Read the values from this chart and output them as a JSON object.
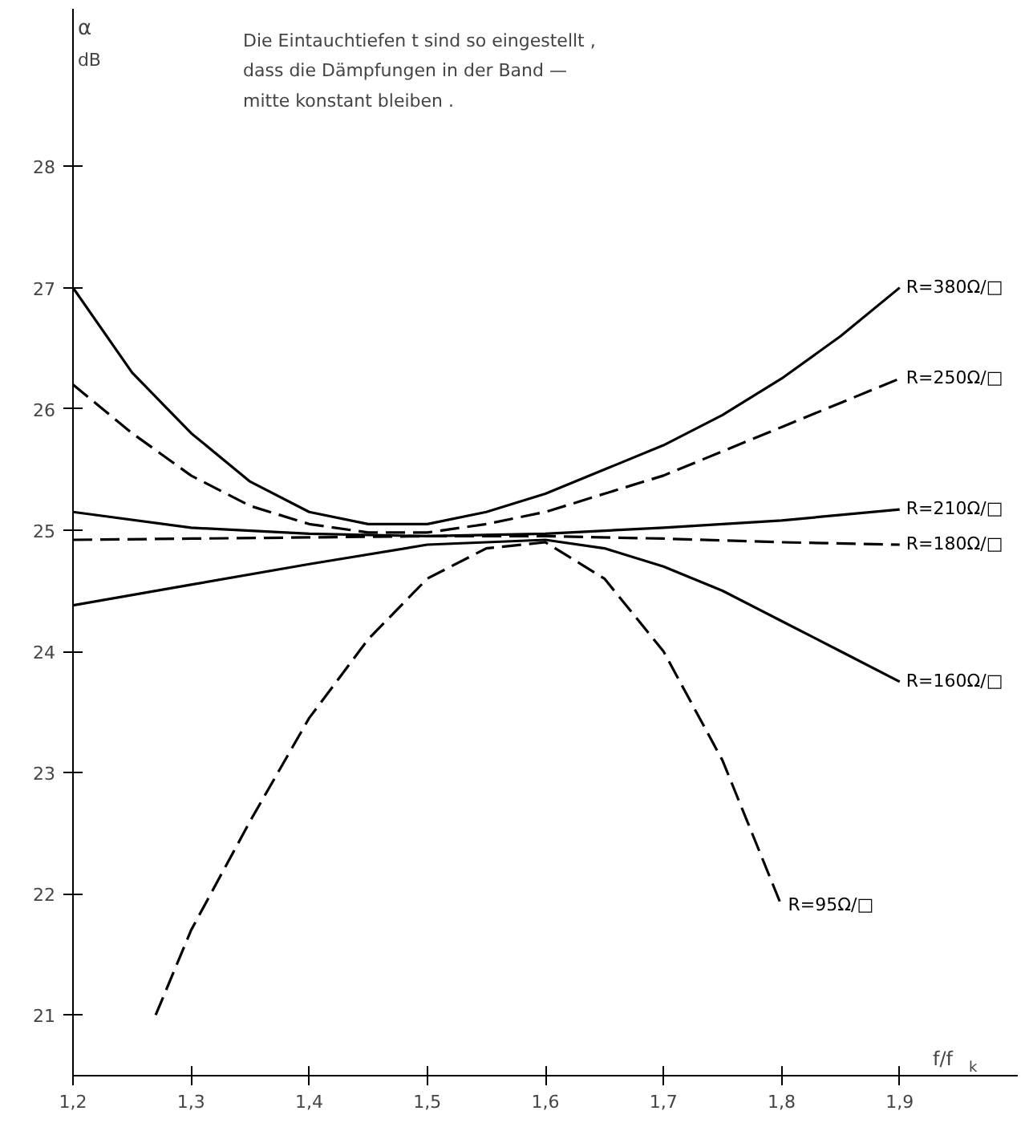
{
  "chart_data": {
    "type": "line",
    "xlabel": "f/f$_{k}$",
    "ylabel": "α dB",
    "annotations": [
      "Die Eintauchtiefen t sind so eingestellt ,\ndass die Dämpfungen in der Band —\nmitte konstant bleiben ."
    ],
    "xlim": [
      1.2,
      2.0
    ],
    "ylim": [
      20.5,
      29.3
    ],
    "xticks": [
      {
        "value": 1.2,
        "label": "1,2"
      },
      {
        "value": 1.3,
        "label": "1,3"
      },
      {
        "value": 1.4,
        "label": "1,4"
      },
      {
        "value": 1.5,
        "label": "1,5"
      },
      {
        "value": 1.6,
        "label": "1,6"
      },
      {
        "value": 1.7,
        "label": "1,7"
      },
      {
        "value": 1.8,
        "label": "1,8"
      },
      {
        "value": 1.9,
        "label": "1,9"
      }
    ],
    "yticks": [
      21,
      22,
      23,
      24,
      25,
      26,
      27,
      28
    ],
    "grid": false,
    "legend": false,
    "series": [
      {
        "name": "R=380Ω/□",
        "color": "#000000",
        "line_style": "solid",
        "x": [
          1.2,
          1.25,
          1.3,
          1.35,
          1.4,
          1.45,
          1.5,
          1.55,
          1.6,
          1.65,
          1.7,
          1.75,
          1.8,
          1.85,
          1.9
        ],
        "values": [
          27.0,
          26.3,
          25.8,
          25.4,
          25.15,
          25.05,
          25.05,
          25.15,
          25.3,
          25.5,
          25.7,
          25.95,
          26.25,
          26.6,
          27.0
        ]
      },
      {
        "name": "R=250Ω/□",
        "color": "#000000",
        "line_style": "dashed",
        "x": [
          1.2,
          1.25,
          1.3,
          1.35,
          1.4,
          1.45,
          1.5,
          1.55,
          1.6,
          1.65,
          1.7,
          1.75,
          1.8,
          1.85,
          1.9
        ],
        "values": [
          26.2,
          25.8,
          25.45,
          25.2,
          25.05,
          24.98,
          24.98,
          25.05,
          25.15,
          25.3,
          25.45,
          25.65,
          25.85,
          26.05,
          26.25
        ]
      },
      {
        "name": "R=210Ω/□",
        "color": "#000000",
        "line_style": "solid",
        "x": [
          1.2,
          1.3,
          1.4,
          1.5,
          1.6,
          1.7,
          1.8,
          1.9
        ],
        "values": [
          25.15,
          25.02,
          24.97,
          24.95,
          24.97,
          25.02,
          25.08,
          25.17
        ]
      },
      {
        "name": "R=180Ω/□",
        "color": "#000000",
        "line_style": "dashed",
        "x": [
          1.2,
          1.3,
          1.4,
          1.5,
          1.6,
          1.7,
          1.8,
          1.9
        ],
        "values": [
          24.92,
          24.93,
          24.94,
          24.95,
          24.95,
          24.93,
          24.9,
          24.88
        ]
      },
      {
        "name": "R=160Ω/□",
        "color": "#000000",
        "line_style": "solid",
        "x": [
          1.2,
          1.3,
          1.4,
          1.5,
          1.6,
          1.65,
          1.7,
          1.75,
          1.8,
          1.85,
          1.9
        ],
        "values": [
          24.38,
          24.55,
          24.72,
          24.88,
          24.92,
          24.85,
          24.7,
          24.5,
          24.25,
          24.0,
          23.75
        ]
      },
      {
        "name": "R=95Ω/□",
        "color": "#000000",
        "line_style": "dashed",
        "x": [
          1.27,
          1.3,
          1.35,
          1.4,
          1.45,
          1.5,
          1.55,
          1.6,
          1.65,
          1.7,
          1.75,
          1.8
        ],
        "values": [
          21.0,
          21.7,
          22.6,
          23.45,
          24.1,
          24.6,
          24.85,
          24.9,
          24.6,
          24.0,
          23.1,
          21.9
        ]
      }
    ]
  }
}
